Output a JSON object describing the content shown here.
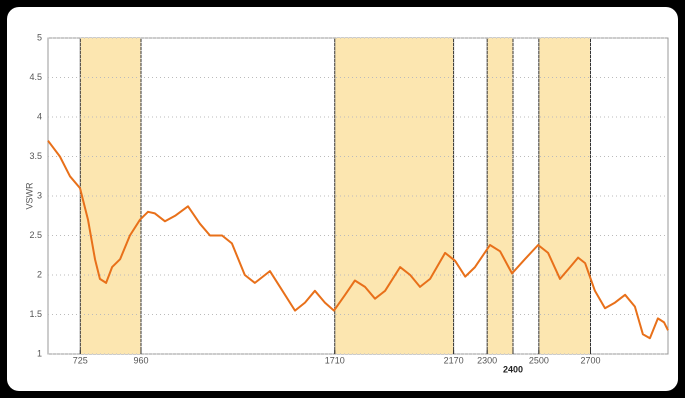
{
  "chart_data": {
    "type": "line",
    "y_label": "VSWR",
    "x": [
      600,
      646,
      685,
      724,
      755,
      782,
      801,
      825,
      848,
      879,
      917,
      956,
      987,
      1014,
      1053,
      1092,
      1142,
      1188,
      1227,
      1274,
      1312,
      1362,
      1401,
      1459,
      1498,
      1556,
      1595,
      1633,
      1672,
      1707,
      1750,
      1788,
      1827,
      1866,
      1905,
      1963,
      2002,
      2040,
      2079,
      2137,
      2176,
      2215,
      2253,
      2311,
      2350,
      2396,
      2446,
      2497,
      2536,
      2582,
      2621,
      2652,
      2679,
      2717,
      2756,
      2795,
      2834,
      2872,
      2903,
      2930,
      2961,
      2985,
      3000
    ],
    "series": [
      {
        "color": "#e8701a",
        "values": [
          3.7,
          3.5,
          3.25,
          3.1,
          2.7,
          2.2,
          1.95,
          1.9,
          2.1,
          2.2,
          2.5,
          2.7,
          2.8,
          2.78,
          2.68,
          2.75,
          2.87,
          2.65,
          2.5,
          2.5,
          2.4,
          2.0,
          1.9,
          2.05,
          1.85,
          1.55,
          1.65,
          1.8,
          1.65,
          1.55,
          1.75,
          1.93,
          1.85,
          1.7,
          1.8,
          2.1,
          2.0,
          1.85,
          1.95,
          2.28,
          2.18,
          1.98,
          2.1,
          2.38,
          2.3,
          2.02,
          2.2,
          2.38,
          2.28,
          1.95,
          2.1,
          2.22,
          2.15,
          1.8,
          1.58,
          1.65,
          1.75,
          1.6,
          1.25,
          1.2,
          1.45,
          1.4,
          1.3
        ]
      }
    ],
    "bands": [
      [
        725,
        960
      ],
      [
        1710,
        2170
      ],
      [
        2300,
        2400
      ],
      [
        2500,
        2700
      ]
    ],
    "band_color": "#fce6b0",
    "xlim": [
      600,
      3000
    ],
    "ylim": [
      1,
      5
    ],
    "xticks": [
      725,
      960,
      1710,
      2170,
      2300,
      2400,
      2500,
      2700
    ],
    "yticks": [
      1,
      1.5,
      2,
      2.5,
      3,
      3.5,
      4,
      4.5,
      5
    ],
    "grid": true
  }
}
